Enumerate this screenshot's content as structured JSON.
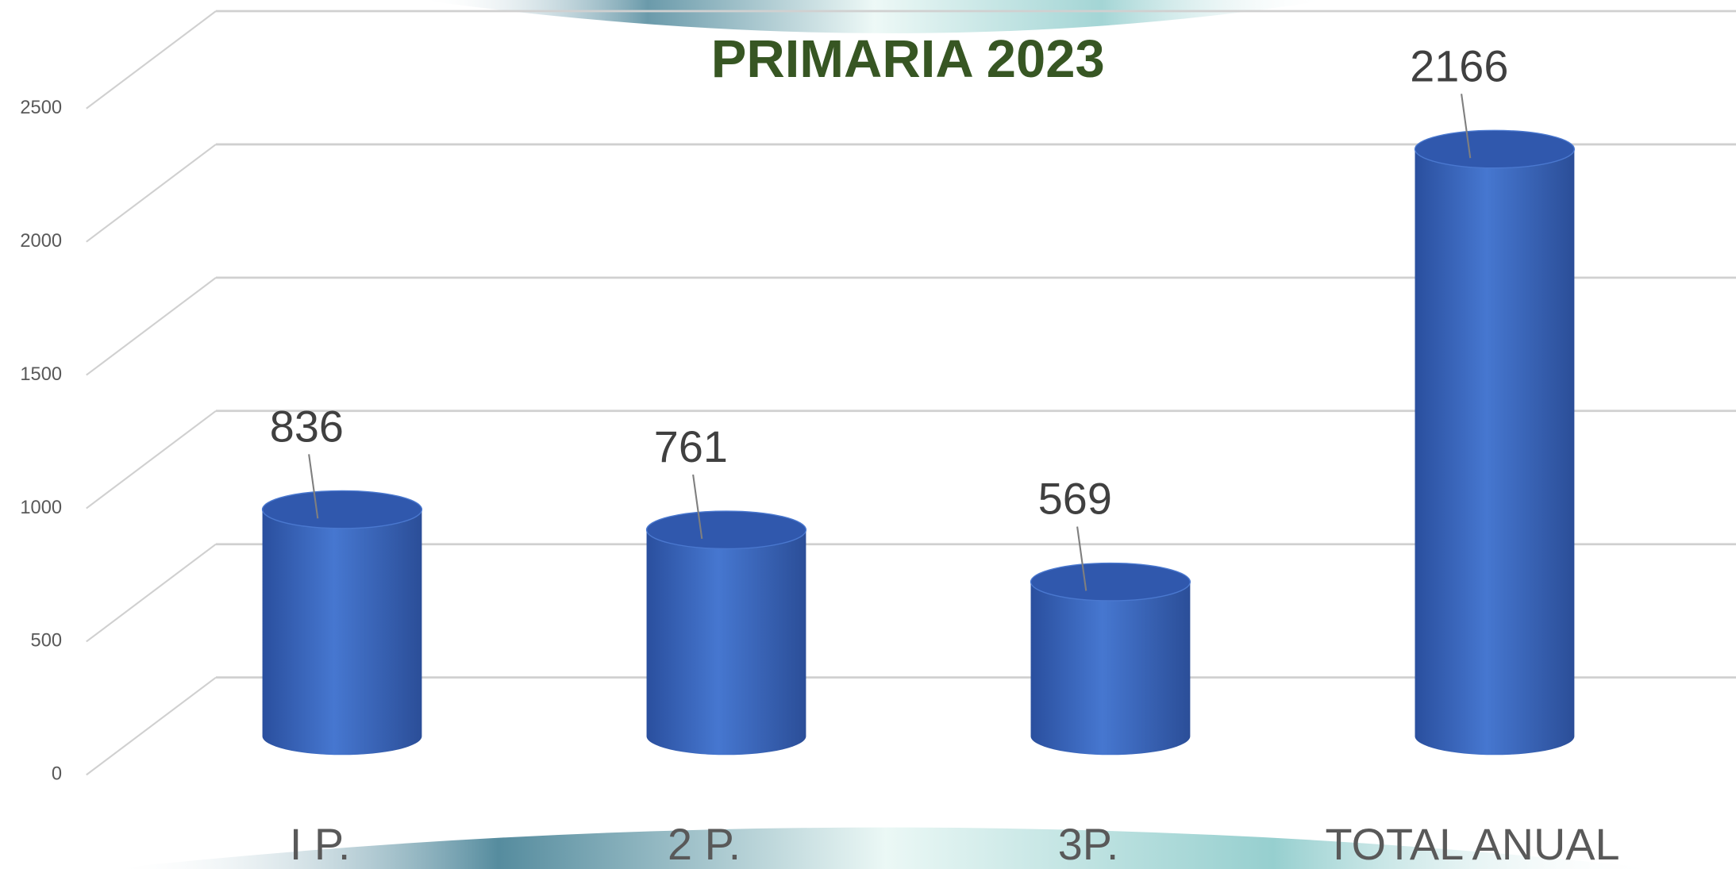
{
  "chart_data": {
    "type": "bar",
    "title": "PRIMARIA 2023",
    "categories": [
      "I P.",
      "2 P.",
      "3P.",
      "TOTAL ANUAL"
    ],
    "values": [
      836,
      761,
      569,
      2166
    ],
    "color": "#3a66c4",
    "ylim": [
      0,
      2500
    ],
    "yticks": [
      0,
      500,
      1000,
      1500,
      2000,
      2500
    ],
    "grid": true
  }
}
